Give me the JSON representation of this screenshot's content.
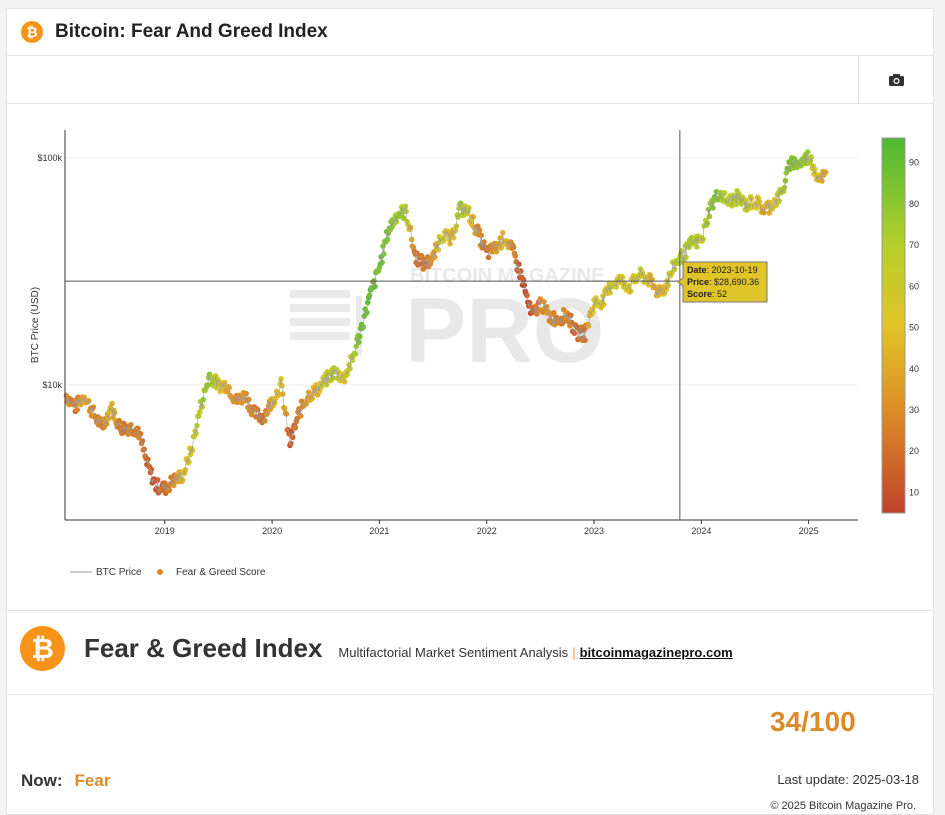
{
  "header": {
    "title": "Bitcoin: Fear And Greed Index",
    "logo": "bitcoin-icon"
  },
  "toolbar": {
    "icon": "camera-icon"
  },
  "chart_data": {
    "type": "scatter",
    "title": "Bitcoin: Fear And Greed Index",
    "ylabel": "BTC Price (USD)",
    "yscale": "log",
    "ylim": [
      2540,
      133000
    ],
    "ytick_labels": [
      "$10k",
      "$100k"
    ],
    "yticks": [
      10000,
      100000
    ],
    "xlim": [
      2018.07,
      2025.46
    ],
    "xtick_labels": [
      "2019",
      "2020",
      "2021",
      "2022",
      "2023",
      "2024",
      "2025"
    ],
    "legend": [
      "BTC Price",
      "Fear & Greed Score"
    ],
    "legend_position": "bottom-left",
    "colorbar": {
      "min": 5,
      "max": 96,
      "ticks": [
        "10",
        "20",
        "30",
        "40",
        "50",
        "60",
        "70",
        "80",
        "90"
      ]
    },
    "watermark": "BITCOIN MAGAZINE PRO",
    "tooltip": {
      "date_label": "Date",
      "date": "2023-10-19",
      "price_label": "Price",
      "price": "$28,690.36",
      "score_label": "Score",
      "score": "52",
      "x": 2023.8,
      "y": 28690.36
    },
    "series": [
      [
        "2018-02",
        9000,
        30
      ],
      [
        "2018-03",
        8000,
        25
      ],
      [
        "2018-04",
        9000,
        40
      ],
      [
        "2018-05",
        7500,
        30
      ],
      [
        "2018-06",
        6500,
        25
      ],
      [
        "2018-07",
        8000,
        45
      ],
      [
        "2018-08",
        6500,
        25
      ],
      [
        "2018-09",
        6500,
        25
      ],
      [
        "2018-10",
        6400,
        25
      ],
      [
        "2018-11",
        4500,
        15
      ],
      [
        "2018-12",
        3600,
        12
      ],
      [
        "2019-01",
        3500,
        20
      ],
      [
        "2019-02",
        3800,
        30
      ],
      [
        "2019-03",
        4000,
        45
      ],
      [
        "2019-04",
        5200,
        55
      ],
      [
        "2019-05",
        8000,
        70
      ],
      [
        "2019-06",
        11000,
        80
      ],
      [
        "2019-07",
        10000,
        55
      ],
      [
        "2019-08",
        10000,
        40
      ],
      [
        "2019-09",
        8500,
        30
      ],
      [
        "2019-10",
        9000,
        35
      ],
      [
        "2019-11",
        7500,
        25
      ],
      [
        "2019-12",
        7200,
        20
      ],
      [
        "2020-01",
        8500,
        45
      ],
      [
        "2020-02",
        10000,
        55
      ],
      [
        "2020-03",
        5500,
        12
      ],
      [
        "2020-04",
        7500,
        25
      ],
      [
        "2020-05",
        9000,
        40
      ],
      [
        "2020-06",
        9500,
        45
      ],
      [
        "2020-07",
        10500,
        60
      ],
      [
        "2020-08",
        11500,
        70
      ],
      [
        "2020-09",
        10700,
        50
      ],
      [
        "2020-10",
        13000,
        70
      ],
      [
        "2020-11",
        18000,
        85
      ],
      [
        "2020-12",
        25000,
        92
      ],
      [
        "2021-01",
        33000,
        85
      ],
      [
        "2021-02",
        48000,
        85
      ],
      [
        "2021-03",
        57000,
        75
      ],
      [
        "2021-04",
        58000,
        70
      ],
      [
        "2021-05",
        37000,
        20
      ],
      [
        "2021-06",
        34000,
        20
      ],
      [
        "2021-07",
        36000,
        30
      ],
      [
        "2021-08",
        47000,
        65
      ],
      [
        "2021-09",
        43000,
        40
      ],
      [
        "2021-10",
        60000,
        75
      ],
      [
        "2021-11",
        57000,
        60
      ],
      [
        "2021-12",
        47000,
        30
      ],
      [
        "2022-01",
        38000,
        20
      ],
      [
        "2022-02",
        40000,
        35
      ],
      [
        "2022-03",
        45000,
        50
      ],
      [
        "2022-04",
        38000,
        25
      ],
      [
        "2022-05",
        29000,
        10
      ],
      [
        "2022-06",
        20000,
        10
      ],
      [
        "2022-07",
        23000,
        30
      ],
      [
        "2022-08",
        20000,
        30
      ],
      [
        "2022-09",
        19500,
        25
      ],
      [
        "2022-10",
        20500,
        30
      ],
      [
        "2022-11",
        17000,
        15
      ],
      [
        "2022-12",
        16800,
        25
      ],
      [
        "2023-01",
        23000,
        55
      ],
      [
        "2023-02",
        23500,
        55
      ],
      [
        "2023-03",
        28000,
        60
      ],
      [
        "2023-04",
        29000,
        55
      ],
      [
        "2023-05",
        27000,
        50
      ],
      [
        "2023-06",
        30500,
        65
      ],
      [
        "2023-07",
        29500,
        50
      ],
      [
        "2023-08",
        26000,
        40
      ],
      [
        "2023-09",
        27000,
        45
      ],
      [
        "2023-10",
        34000,
        70
      ],
      [
        "2023-11",
        37500,
        70
      ],
      [
        "2023-12",
        42500,
        72
      ],
      [
        "2024-01",
        43000,
        60
      ],
      [
        "2024-02",
        61000,
        80
      ],
      [
        "2024-03",
        70000,
        80
      ],
      [
        "2024-04",
        64000,
        65
      ],
      [
        "2024-05",
        67000,
        70
      ],
      [
        "2024-06",
        62000,
        60
      ],
      [
        "2024-07",
        65000,
        55
      ],
      [
        "2024-08",
        59000,
        40
      ],
      [
        "2024-09",
        63000,
        50
      ],
      [
        "2024-10",
        70000,
        70
      ],
      [
        "2024-11",
        96000,
        85
      ],
      [
        "2024-12",
        94000,
        80
      ],
      [
        "2025-01",
        102000,
        75
      ],
      [
        "2025-02",
        84000,
        45
      ],
      [
        "2025-03",
        83000,
        35
      ]
    ]
  },
  "index": {
    "title": "Fear & Greed Index",
    "subtitle": "Multifactorial Market Sentiment Analysis",
    "separator": "|",
    "link": "bitcoinmagazinepro.com",
    "gauge": {
      "value": 34,
      "ticks": [
        "0",
        "25",
        "46",
        "54",
        "75",
        "100"
      ],
      "bands": [
        {
          "from": 0,
          "to": 25,
          "color": "#b94a28"
        },
        {
          "from": 25,
          "to": 46,
          "color": "#dd8a26"
        },
        {
          "from": 46,
          "to": 54,
          "color": "#e2c62a"
        },
        {
          "from": 54,
          "to": 75,
          "color": "#b4cd2c"
        },
        {
          "from": 75,
          "to": 100,
          "color": "#4fb92f"
        }
      ]
    },
    "score_text": "34/100",
    "now_label": "Now:",
    "now_value": "Fear",
    "last_update": "Last update: 2025-03-18",
    "copyright": "© 2025 Bitcoin Magazine Pro."
  }
}
